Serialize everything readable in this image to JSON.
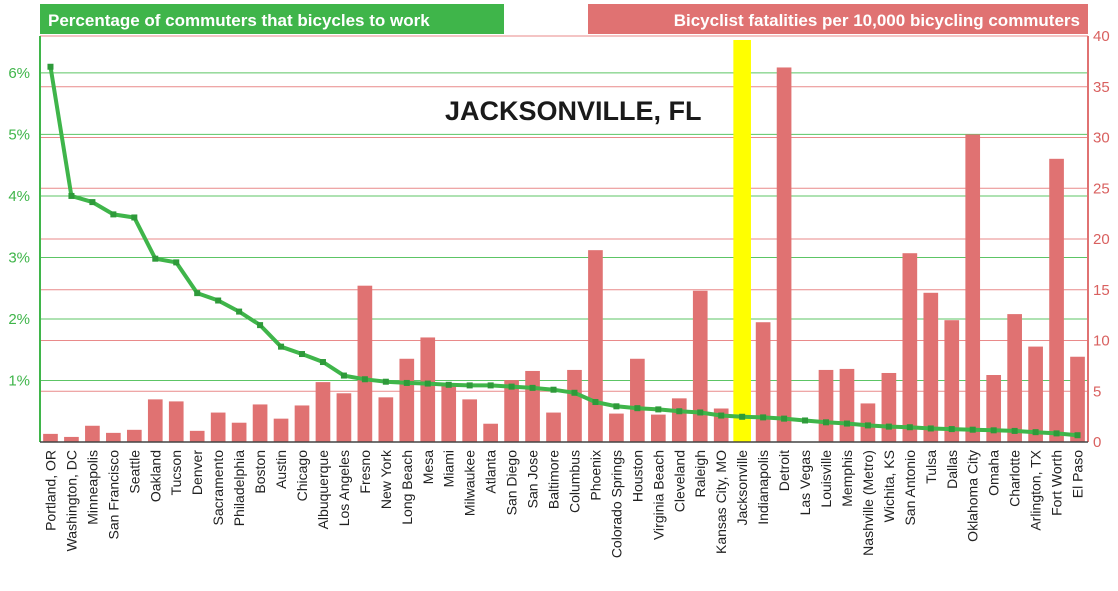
{
  "chart_data": {
    "type": "bar",
    "categories": [
      "Portland, OR",
      "Washington, DC",
      "Minneapolis",
      "San Francisco",
      "Seattle",
      "Oakland",
      "Tucson",
      "Denver",
      "Sacramento",
      "Philadelphia",
      "Boston",
      "Austin",
      "Chicago",
      "Albuquerque",
      "Los Angeles",
      "Fresno",
      "New York",
      "Long Beach",
      "Mesa",
      "Miami",
      "Milwaukee",
      "Atlanta",
      "San Diego",
      "San Jose",
      "Baltimore",
      "Columbus",
      "Phoenix",
      "Colorado Springs",
      "Houston",
      "Virginia Beach",
      "Cleveland",
      "Raleigh",
      "Kansas City, MO",
      "Jacksonville",
      "Indianapolis",
      "Detroit",
      "Las Vegas",
      "Louisville",
      "Memphis",
      "Nashville (Metro)",
      "Wichita, KS",
      "San Antonio",
      "Tulsa",
      "Dallas",
      "Oklahoma City",
      "Omaha",
      "Charlotte",
      "Arlington, TX",
      "Fort Worth",
      "El Paso"
    ],
    "series": [
      {
        "name": "Percentage of commuters that bicycles to work",
        "type": "line",
        "axis": "left",
        "color": "#3fb54a",
        "values": [
          6.1,
          4.0,
          3.9,
          3.7,
          3.65,
          2.98,
          2.92,
          2.42,
          2.3,
          2.12,
          1.9,
          1.55,
          1.43,
          1.3,
          1.08,
          1.02,
          0.98,
          0.96,
          0.95,
          0.93,
          0.92,
          0.92,
          0.9,
          0.88,
          0.85,
          0.8,
          0.65,
          0.58,
          0.55,
          0.53,
          0.5,
          0.48,
          0.43,
          0.41,
          0.4,
          0.38,
          0.35,
          0.32,
          0.3,
          0.27,
          0.25,
          0.24,
          0.22,
          0.21,
          0.2,
          0.19,
          0.18,
          0.16,
          0.14,
          0.11
        ]
      },
      {
        "name": "Bicyclist fatalities per 10,000 bicycling commuters",
        "type": "bar",
        "axis": "right",
        "color": "#e07272",
        "values": [
          0.8,
          0.5,
          1.6,
          0.9,
          1.2,
          4.2,
          4.0,
          1.1,
          2.9,
          1.9,
          3.7,
          2.3,
          3.6,
          5.9,
          4.8,
          15.4,
          4.4,
          8.2,
          10.3,
          5.8,
          4.2,
          1.8,
          6.1,
          7.0,
          2.9,
          7.1,
          18.9,
          2.8,
          8.2,
          2.7,
          4.3,
          14.9,
          3.3,
          null,
          11.8,
          36.9,
          0,
          7.1,
          7.2,
          3.8,
          6.8,
          18.6,
          14.7,
          12.0,
          30.3,
          6.6,
          12.6,
          9.4,
          27.9,
          8.4
        ]
      }
    ],
    "highlight_category": "Jacksonville",
    "highlight_color": "#ffff00",
    "annotation": "JACKSONVILLE, FL",
    "y_left": {
      "ticks": [
        "1%",
        "2%",
        "3%",
        "4%",
        "5%",
        "6%"
      ],
      "tick_values": [
        1,
        2,
        3,
        4,
        5,
        6
      ],
      "min": 0,
      "max": 6.6,
      "color": "#3fb54a"
    },
    "y_right": {
      "ticks": [
        "0",
        "5",
        "10",
        "15",
        "20",
        "25",
        "30",
        "35",
        "40"
      ],
      "tick_values": [
        0,
        5,
        10,
        15,
        20,
        25,
        30,
        35,
        40
      ],
      "min": 0,
      "max": 40,
      "color": "#e07272"
    },
    "legend": {
      "left_label": "Percentage of commuters that bicycles to work",
      "right_label": "Bicyclist fatalities per 10,000 bicycling commuters",
      "placement": "top"
    },
    "grid": true
  }
}
